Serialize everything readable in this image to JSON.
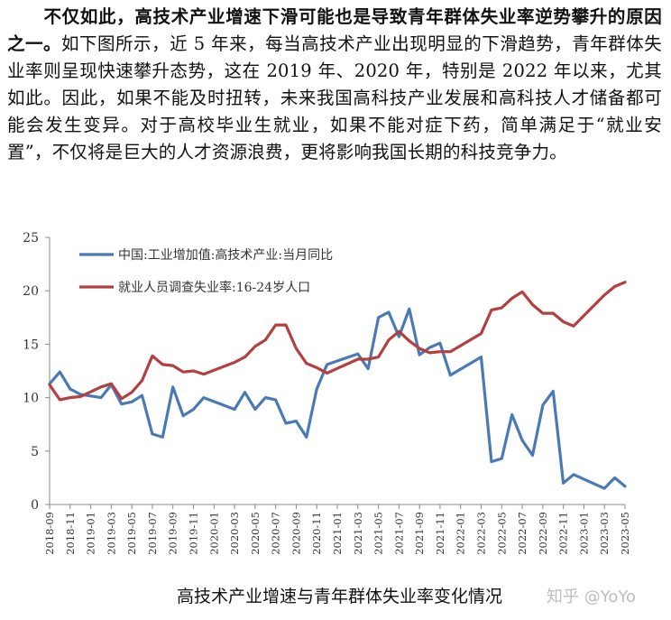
{
  "paragraph": {
    "bold_lead": "不仅如此，高技术产业增速下滑可能也是导致青年群体失业率逆势攀升的原因之一。",
    "body": "如下图所示，近 5 年来，每当高技术产业出现明显的下滑趋势，青年群体失业率则呈现快速攀升态势，这在 2019 年、2020 年，特别是 2022 年以来，尤其如此。因此，如果不能及时扭转，未来我国高科技产业发展和高科技人才储备都可能会发生变异。对于高校毕业生就业，如果不能对症下药，简单满足于“就业安置”，不仅将是巨大的人才资源浪费，更将影响我国长期的科技竞争力。"
  },
  "caption": "高技术产业增速与青年群体失业率变化情况",
  "watermark": "知乎 @YoYo",
  "chart_data": {
    "type": "line",
    "ylim": [
      0,
      25
    ],
    "yticks": [
      0,
      5,
      10,
      15,
      20,
      25
    ],
    "x_start": "2018-09",
    "x_end": "2023-05",
    "tick_labels": [
      "2018-09",
      "2018-11",
      "2019-01",
      "2019-03",
      "2019-05",
      "2019-07",
      "2019-09",
      "2019-11",
      "2020-01",
      "2020-03",
      "2020-05",
      "2020-07",
      "2020-09",
      "2020-11",
      "2021-01",
      "2021-03",
      "2021-05",
      "2021-07",
      "2021-09",
      "2021-11",
      "2022-01",
      "2022-03",
      "2022-05",
      "2022-07",
      "2022-09",
      "2022-11",
      "2023-01",
      "2023-03",
      "2023-05"
    ],
    "legend_position": "top-left",
    "grid": false,
    "series": [
      {
        "name": "中国:工业增加值:高技术产业:当月同比",
        "color": "#4a7ab5",
        "points": [
          [
            "2018-09",
            11.3
          ],
          [
            "2018-10",
            12.4
          ],
          [
            "2018-11",
            10.8
          ],
          [
            "2018-12",
            10.3
          ],
          [
            "2019-02",
            10.0
          ],
          [
            "2019-03",
            11.2
          ],
          [
            "2019-04",
            9.4
          ],
          [
            "2019-05",
            9.6
          ],
          [
            "2019-06",
            10.2
          ],
          [
            "2019-07",
            6.6
          ],
          [
            "2019-08",
            6.3
          ],
          [
            "2019-09",
            11.0
          ],
          [
            "2019-10",
            8.3
          ],
          [
            "2019-11",
            8.9
          ],
          [
            "2019-12",
            10.0
          ],
          [
            "2020-03",
            8.9
          ],
          [
            "2020-04",
            10.5
          ],
          [
            "2020-05",
            8.9
          ],
          [
            "2020-06",
            10.0
          ],
          [
            "2020-07",
            9.8
          ],
          [
            "2020-08",
            7.6
          ],
          [
            "2020-09",
            7.8
          ],
          [
            "2020-10",
            6.3
          ],
          [
            "2020-11",
            10.8
          ],
          [
            "2020-12",
            13.1
          ],
          [
            "2021-03",
            14.1
          ],
          [
            "2021-04",
            12.7
          ],
          [
            "2021-05",
            17.5
          ],
          [
            "2021-06",
            18.0
          ],
          [
            "2021-07",
            15.7
          ],
          [
            "2021-08",
            18.3
          ],
          [
            "2021-09",
            14.0
          ],
          [
            "2021-10",
            14.7
          ],
          [
            "2021-11",
            15.1
          ],
          [
            "2021-12",
            12.1
          ],
          [
            "2022-03",
            13.8
          ],
          [
            "2022-04",
            4.0
          ],
          [
            "2022-05",
            4.3
          ],
          [
            "2022-06",
            8.4
          ],
          [
            "2022-07",
            6.0
          ],
          [
            "2022-08",
            4.6
          ],
          [
            "2022-09",
            9.3
          ],
          [
            "2022-10",
            10.6
          ],
          [
            "2022-11",
            2.0
          ],
          [
            "2022-12",
            2.8
          ],
          [
            "2023-03",
            1.5
          ],
          [
            "2023-04",
            2.5
          ],
          [
            "2023-05",
            1.7
          ]
        ]
      },
      {
        "name": "就业人员调查失业率:16-24岁人口",
        "color": "#b34040",
        "points": [
          [
            "2018-09",
            11.2
          ],
          [
            "2018-10",
            9.8
          ],
          [
            "2018-11",
            10.0
          ],
          [
            "2018-12",
            10.1
          ],
          [
            "2019-02",
            11.0
          ],
          [
            "2019-03",
            11.3
          ],
          [
            "2019-04",
            9.9
          ],
          [
            "2019-05",
            10.5
          ],
          [
            "2019-06",
            11.6
          ],
          [
            "2019-07",
            13.9
          ],
          [
            "2019-08",
            13.1
          ],
          [
            "2019-09",
            13.0
          ],
          [
            "2019-10",
            12.4
          ],
          [
            "2019-11",
            12.5
          ],
          [
            "2019-12",
            12.2
          ],
          [
            "2020-03",
            13.3
          ],
          [
            "2020-04",
            13.8
          ],
          [
            "2020-05",
            14.8
          ],
          [
            "2020-06",
            15.4
          ],
          [
            "2020-07",
            16.8
          ],
          [
            "2020-08",
            16.8
          ],
          [
            "2020-09",
            14.6
          ],
          [
            "2020-10",
            13.2
          ],
          [
            "2020-11",
            12.8
          ],
          [
            "2020-12",
            12.3
          ],
          [
            "2021-03",
            13.6
          ],
          [
            "2021-04",
            13.6
          ],
          [
            "2021-05",
            13.8
          ],
          [
            "2021-06",
            15.4
          ],
          [
            "2021-07",
            16.2
          ],
          [
            "2021-08",
            15.3
          ],
          [
            "2021-09",
            14.6
          ],
          [
            "2021-10",
            14.2
          ],
          [
            "2021-11",
            14.3
          ],
          [
            "2021-12",
            14.3
          ],
          [
            "2022-03",
            16.0
          ],
          [
            "2022-04",
            18.2
          ],
          [
            "2022-05",
            18.4
          ],
          [
            "2022-06",
            19.3
          ],
          [
            "2022-07",
            19.9
          ],
          [
            "2022-08",
            18.7
          ],
          [
            "2022-09",
            17.9
          ],
          [
            "2022-10",
            17.9
          ],
          [
            "2022-11",
            17.1
          ],
          [
            "2022-12",
            16.7
          ],
          [
            "2023-03",
            19.6
          ],
          [
            "2023-04",
            20.4
          ],
          [
            "2023-05",
            20.8
          ]
        ]
      }
    ]
  }
}
